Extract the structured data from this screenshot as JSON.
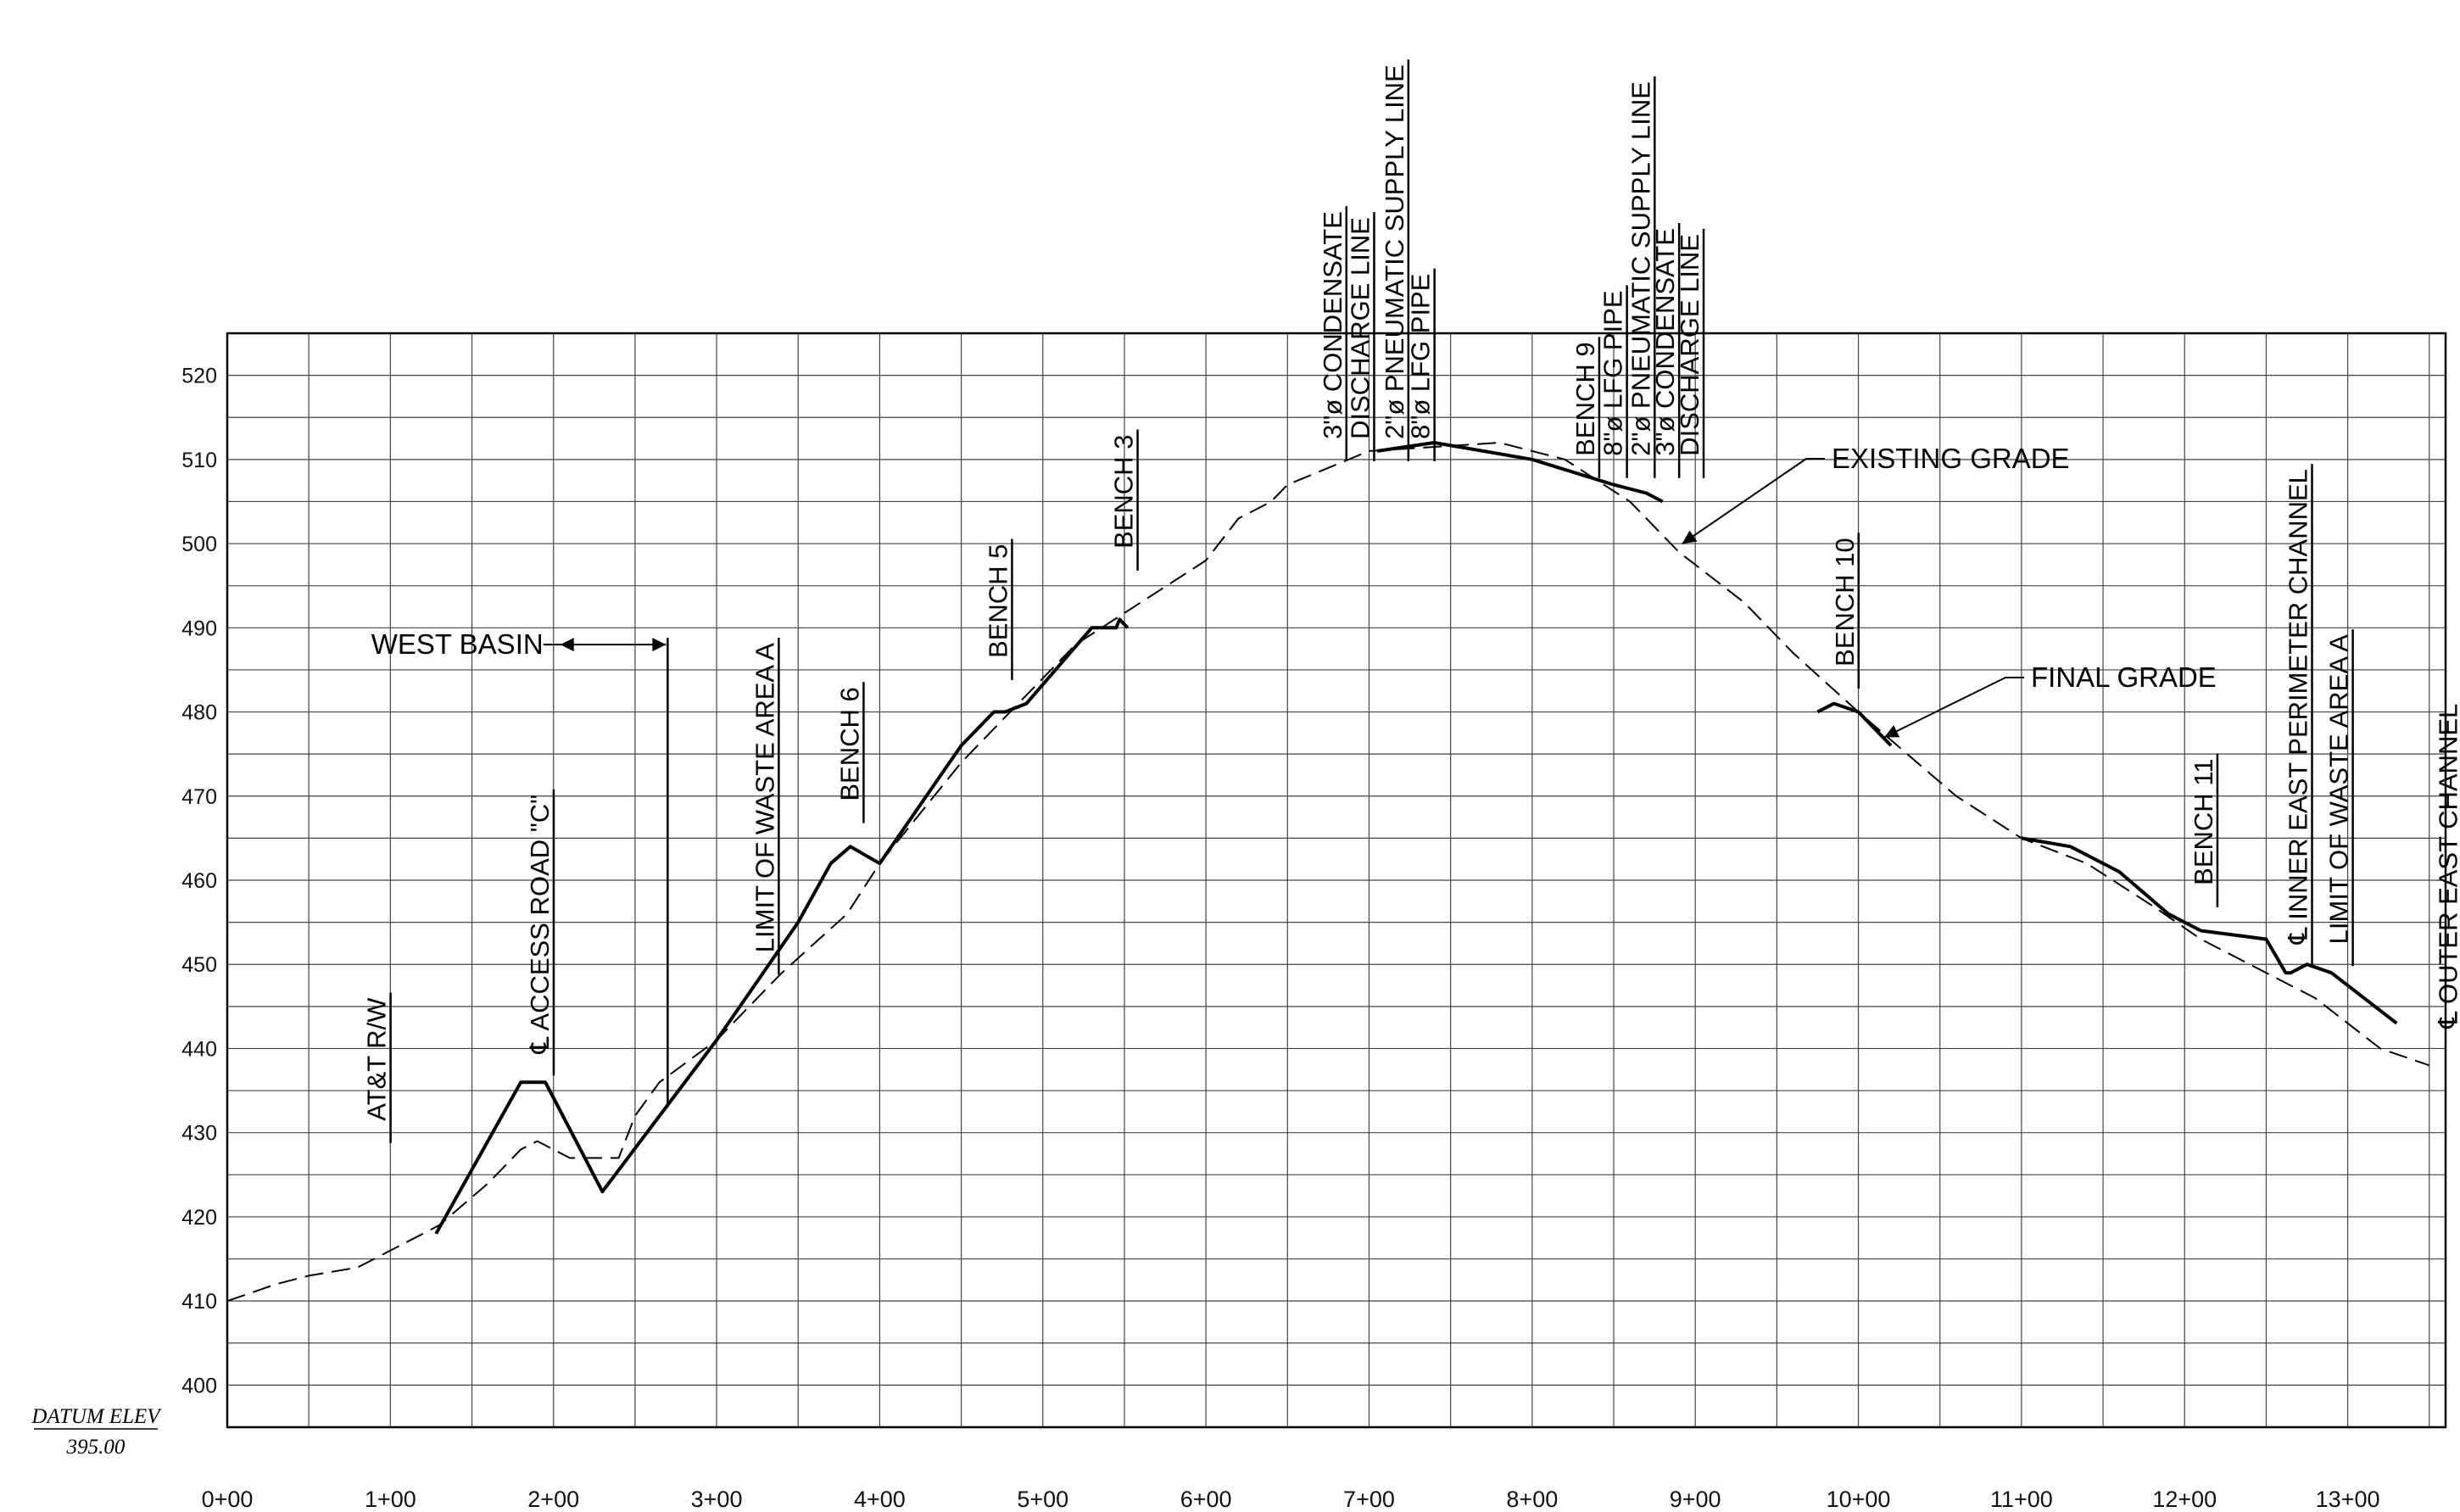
{
  "chart_data": {
    "type": "line",
    "title": "",
    "xlabel": "",
    "ylabel": "",
    "datum": {
      "label": "DATUM ELEV",
      "value": "395.00"
    },
    "xlim": [
      0,
      1360
    ],
    "ylim": [
      395,
      525
    ],
    "x_tick_values": [
      0,
      100,
      200,
      300,
      400,
      500,
      600,
      700,
      800,
      900,
      1000,
      1100,
      1200,
      1300
    ],
    "x_tick_labels": [
      "0+00",
      "1+00",
      "2+00",
      "3+00",
      "4+00",
      "5+00",
      "6+00",
      "7+00",
      "8+00",
      "9+00",
      "10+00",
      "11+00",
      "12+00",
      "13+00"
    ],
    "y_tick_values": [
      400,
      410,
      420,
      430,
      440,
      450,
      460,
      470,
      480,
      490,
      500,
      510,
      520
    ],
    "y_tick_labels": [
      "400",
      "410",
      "420",
      "430",
      "440",
      "450",
      "460",
      "470",
      "480",
      "490",
      "500",
      "510",
      "520"
    ],
    "grid": true,
    "series": [
      {
        "name": "EXISTING GRADE",
        "style": "dashed",
        "x": [
          0,
          30,
          50,
          80,
          100,
          130,
          160,
          180,
          190,
          210,
          240,
          250,
          265,
          300,
          340,
          380,
          400,
          450,
          480,
          520,
          560,
          600,
          620,
          640,
          650,
          700,
          740,
          780,
          820,
          860,
          890,
          930,
          960,
          1000,
          1030,
          1060,
          1100,
          1140,
          1180,
          1210,
          1250,
          1280,
          1320,
          1350
        ],
        "y": [
          410,
          412,
          413,
          414,
          416,
          419,
          424,
          428,
          429,
          427,
          427,
          432,
          436,
          441,
          449,
          456,
          462,
          474,
          480,
          488,
          493,
          498,
          503,
          505,
          507,
          511,
          511.5,
          512,
          510,
          505,
          499,
          493,
          487,
          480,
          475,
          470,
          465,
          462,
          457,
          453,
          449,
          446,
          440,
          438
        ]
      },
      {
        "name": "FINAL GRADE",
        "style": "solid",
        "segments": [
          {
            "x": [
              128,
              180,
              195,
              230,
              300,
              350,
              370,
              382,
              400,
              450,
              470,
              477,
              490,
              530,
              545,
              547,
              552
            ],
            "y": [
              418,
              436,
              436,
              423,
              441,
              455,
              462,
              464,
              462,
              476,
              480,
              480,
              481,
              490,
              490,
              491,
              490
            ]
          },
          {
            "x": [
              705,
              740,
              800,
              850,
              870,
              880
            ],
            "y": [
              511,
              512,
              510,
              507,
              506,
              505
            ]
          },
          {
            "x": [
              975,
              985,
              1000,
              1020
            ],
            "y": [
              480,
              481,
              480,
              476
            ]
          },
          {
            "x": [
              1100,
              1130,
              1160,
              1190,
              1210,
              1250,
              1262,
              1265,
              1275,
              1290,
              1330
            ],
            "y": [
              465,
              464,
              461,
              456,
              454,
              453,
              449,
              449,
              450,
              449,
              443
            ]
          }
        ]
      }
    ],
    "callouts": [
      {
        "label": "EXISTING GRADE",
        "target": [
          892,
          500
        ]
      },
      {
        "label": "FINAL GRADE",
        "target": [
          1016,
          477
        ]
      }
    ],
    "station_labels": [
      {
        "text": "AT&T R/W",
        "x": 97,
        "baseline_y": 430
      },
      {
        "text": "℄ ACCESS ROAD \"C\"",
        "x": 197,
        "baseline_y": 438
      },
      {
        "text": "LIMIT OF WASTE AREA A",
        "x": 335,
        "baseline_y": 450
      },
      {
        "text": "BENCH 6",
        "x": 387,
        "baseline_y": 468
      },
      {
        "text": "BENCH 5",
        "x": 478,
        "baseline_y": 485
      },
      {
        "text": "BENCH 3",
        "x": 555,
        "baseline_y": 498
      },
      {
        "text": "3\"ø CONDENSATE",
        "x": 683,
        "baseline_y": 511
      },
      {
        "text": "DISCHARGE LINE",
        "x": 700,
        "baseline_y": 511
      },
      {
        "text": "2\"ø PNEUMATIC SUPPLY LINE",
        "x": 721,
        "baseline_y": 511
      },
      {
        "text": "8\"ø LFG PIPE",
        "x": 737,
        "baseline_y": 511
      },
      {
        "text": "BENCH 9",
        "x": 838,
        "baseline_y": 509
      },
      {
        "text": "8\"ø LFG PIPE",
        "x": 855,
        "baseline_y": 509
      },
      {
        "text": "2\"ø PNEUMATIC SUPPLY LINE",
        "x": 872,
        "baseline_y": 509
      },
      {
        "text": "3\"ø CONDENSATE",
        "x": 887,
        "baseline_y": 509
      },
      {
        "text": "DISCHARGE LINE",
        "x": 902,
        "baseline_y": 509
      },
      {
        "text": "BENCH 10",
        "x": 997,
        "baseline_y": 484
      },
      {
        "text": "BENCH 11",
        "x": 1217,
        "baseline_y": 458
      },
      {
        "text": "℄ INNER EAST PERIMETER CHANNEL",
        "x": 1275,
        "baseline_y": 451
      },
      {
        "text": "LIMIT OF WASTE AREA A",
        "x": 1300,
        "baseline_y": 451
      },
      {
        "text": "℄ OUTER EAST CHANNEL",
        "x": 1367,
        "baseline_y": 441
      }
    ],
    "annotations": [
      {
        "text": "WEST BASIN",
        "dimension_from": 200,
        "dimension_to": 270,
        "y": 488
      }
    ]
  }
}
